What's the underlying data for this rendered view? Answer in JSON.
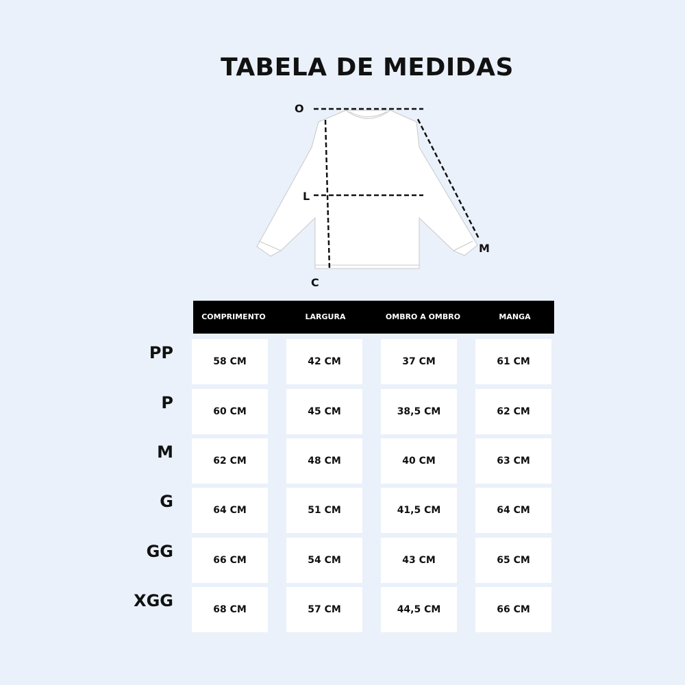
{
  "title": "TABELA DE MEDIDAS",
  "diagram": {
    "labels": {
      "ombro": "O",
      "largura": "L",
      "manga": "M",
      "comprimento": "C"
    }
  },
  "colors": {
    "background": "#eaf1fa",
    "header": "#000000",
    "cell": "#ffffff"
  },
  "table": {
    "headers": [
      "COMPRIMENTO",
      "LARGURA",
      "OMBRO A OMBRO",
      "MANGA"
    ],
    "rows": [
      {
        "size": "PP",
        "values": [
          "58 CM",
          "42 CM",
          "37 CM",
          "61 CM"
        ]
      },
      {
        "size": "P",
        "values": [
          "60 CM",
          "45 CM",
          "38,5 CM",
          "62 CM"
        ]
      },
      {
        "size": "M",
        "values": [
          "62 CM",
          "48 CM",
          "40 CM",
          "63 CM"
        ]
      },
      {
        "size": "G",
        "values": [
          "64 CM",
          "51 CM",
          "41,5 CM",
          "64 CM"
        ]
      },
      {
        "size": "GG",
        "values": [
          "66 CM",
          "54 CM",
          "43 CM",
          "65 CM"
        ]
      },
      {
        "size": "XGG",
        "values": [
          "68 CM",
          "57 CM",
          "44,5 CM",
          "66 CM"
        ]
      }
    ]
  }
}
